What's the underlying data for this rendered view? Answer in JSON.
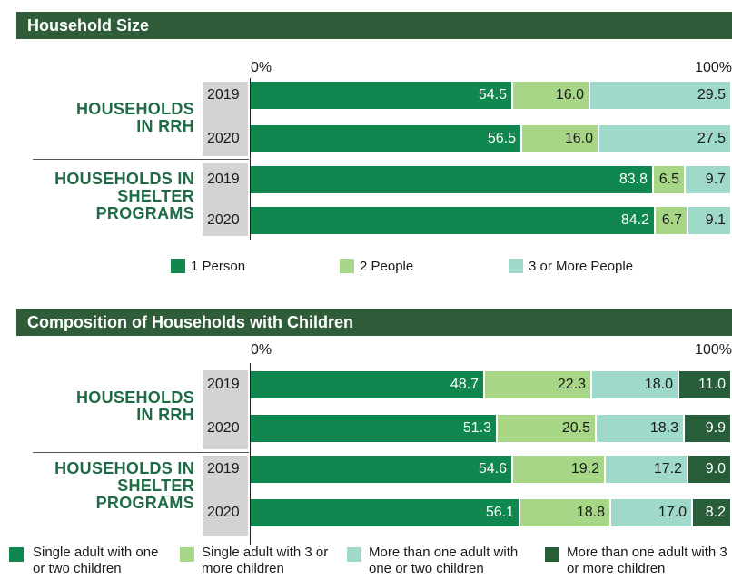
{
  "colors": {
    "c1": "#10874f",
    "c2": "#a7d686",
    "c3": "#9fd9c9",
    "c4": "#275d39",
    "header": "#2f5d3a",
    "label": "#1f6b45"
  },
  "chart_data": [
    {
      "type": "bar",
      "title": "Household Size",
      "axis_min_label": "0%",
      "axis_max_label": "100%",
      "groups": [
        {
          "label": "HOUSEHOLDS IN RRH",
          "rows": [
            {
              "year": "2019",
              "values": [
                54.5,
                16.0,
                29.5
              ]
            },
            {
              "year": "2020",
              "values": [
                56.5,
                16.0,
                27.5
              ]
            }
          ]
        },
        {
          "label": "HOUSEHOLDS IN SHELTER PROGRAMS",
          "rows": [
            {
              "year": "2019",
              "values": [
                83.8,
                6.5,
                9.7
              ]
            },
            {
              "year": "2020",
              "values": [
                84.2,
                6.7,
                9.1
              ]
            }
          ]
        }
      ],
      "series": [
        {
          "name": "1 Person",
          "color": "#10874f"
        },
        {
          "name": "2 People",
          "color": "#a7d686"
        },
        {
          "name": "3 or More People",
          "color": "#9fd9c9"
        }
      ],
      "xlim": [
        0,
        100
      ]
    },
    {
      "type": "bar",
      "title": "Composition of Households with Children",
      "axis_min_label": "0%",
      "axis_max_label": "100%",
      "groups": [
        {
          "label": "HOUSEHOLDS IN RRH",
          "rows": [
            {
              "year": "2019",
              "values": [
                48.7,
                22.3,
                18.0,
                11.0
              ]
            },
            {
              "year": "2020",
              "values": [
                51.3,
                20.5,
                18.3,
                9.9
              ]
            }
          ]
        },
        {
          "label": "HOUSEHOLDS IN SHELTER PROGRAMS",
          "rows": [
            {
              "year": "2019",
              "values": [
                54.6,
                19.2,
                17.2,
                9.0
              ]
            },
            {
              "year": "2020",
              "values": [
                56.1,
                18.8,
                17.0,
                8.2
              ]
            }
          ]
        }
      ],
      "series": [
        {
          "name": "Single adult with one or two children",
          "color": "#10874f"
        },
        {
          "name": "Single adult with 3 or more children",
          "color": "#a7d686"
        },
        {
          "name": "More than one adult with one or two children",
          "color": "#9fd9c9"
        },
        {
          "name": "More than one adult with 3 or more children",
          "color": "#275d39"
        }
      ],
      "xlim": [
        0,
        100
      ]
    }
  ]
}
